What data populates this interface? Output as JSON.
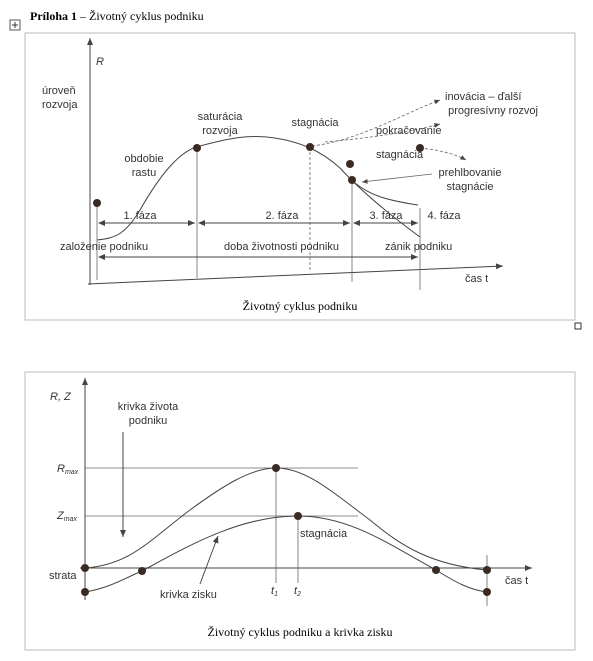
{
  "heading": {
    "label": "Príloha 1",
    "title": "– Životný cyklus podniku"
  },
  "figure1": {
    "axis_y": "R",
    "axis_x": "čas t",
    "labels": {
      "level": [
        "úroveň",
        "rozvoja"
      ],
      "growth": [
        "obdobie",
        "rastu"
      ],
      "saturation": [
        "saturácia",
        "rozvoja"
      ],
      "stagnation": "stagnácia",
      "innovation": [
        "inovácia – ďalší",
        "progresívny rozvoj"
      ],
      "continuation": "pokračovanie",
      "stagnation2": "stagnácia",
      "deepening": [
        "prehlbovanie",
        "stagnácie"
      ]
    },
    "phases": [
      "1. fáza",
      "2. fáza",
      "3. fáza",
      "4. fáza"
    ],
    "events": [
      "založenie podniku",
      "doba životnosti podniku",
      "zánik podniku"
    ],
    "caption": "Životný cyklus podniku"
  },
  "figure2": {
    "axis_y": "R, Z",
    "axis_x": "čas t",
    "rmax": {
      "main": "R",
      "sub": "max"
    },
    "zmax": {
      "main": "Z",
      "sub": "max"
    },
    "life_curve": [
      "krivka života",
      "podniku"
    ],
    "loss": "strata",
    "stagnation": "stagnácia",
    "profit_curve": "krivka zisku",
    "t1": {
      "main": "t",
      "sub": "1"
    },
    "t2": {
      "main": "t",
      "sub": "2"
    },
    "caption": "Životný cyklus podniku a krivka zisku"
  }
}
